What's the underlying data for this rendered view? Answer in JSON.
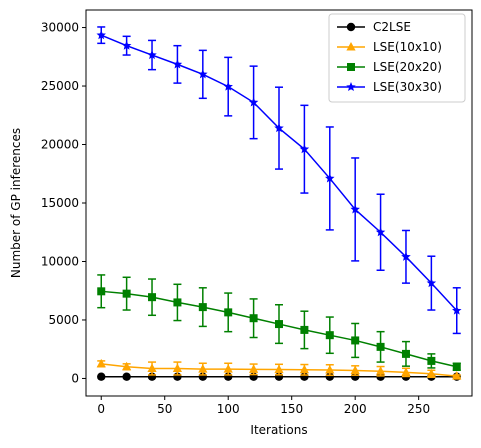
{
  "chart_data": {
    "type": "line",
    "title": "",
    "xlabel": "Iterations",
    "ylabel": "Number of GP inferences",
    "xlim": [
      -12,
      292
    ],
    "ylim": [
      -1500,
      31500
    ],
    "xticks": [
      0,
      50,
      100,
      150,
      200,
      250
    ],
    "yticks": [
      0,
      5000,
      10000,
      15000,
      20000,
      25000,
      30000
    ],
    "grid": false,
    "legend": "top-right",
    "series": [
      {
        "name": "C2LSE",
        "color": "#000000",
        "marker": "circle",
        "x": [
          0,
          20,
          40,
          60,
          80,
          100,
          120,
          140,
          160,
          180,
          200,
          220,
          240,
          260,
          280
        ],
        "y": [
          150,
          150,
          150,
          150,
          150,
          150,
          150,
          150,
          150,
          150,
          150,
          150,
          150,
          150,
          150
        ],
        "err": [
          0,
          0,
          0,
          0,
          0,
          0,
          0,
          0,
          0,
          0,
          0,
          0,
          0,
          0,
          0
        ]
      },
      {
        "name": "LSE(10x10)",
        "color": "#ffa500",
        "marker": "triangle",
        "x": [
          0,
          20,
          40,
          60,
          80,
          100,
          120,
          140,
          160,
          180,
          200,
          220,
          240,
          260,
          280
        ],
        "y": [
          1250,
          1000,
          850,
          850,
          800,
          800,
          780,
          760,
          740,
          720,
          680,
          620,
          520,
          400,
          200
        ],
        "err": [
          250,
          250,
          550,
          550,
          500,
          500,
          450,
          450,
          450,
          450,
          400,
          400,
          350,
          300,
          100
        ]
      },
      {
        "name": "LSE(20x20)",
        "color": "#008000",
        "marker": "square",
        "x": [
          0,
          20,
          40,
          60,
          80,
          100,
          120,
          140,
          160,
          180,
          200,
          220,
          240,
          260,
          280
        ],
        "y": [
          7450,
          7250,
          6950,
          6500,
          6100,
          5650,
          5150,
          4650,
          4150,
          3700,
          3250,
          2700,
          2100,
          1500,
          1000
        ],
        "err": [
          1400,
          1400,
          1550,
          1550,
          1650,
          1650,
          1650,
          1650,
          1600,
          1550,
          1450,
          1300,
          1050,
          600,
          300
        ]
      },
      {
        "name": "LSE(30x30)",
        "color": "#0000ff",
        "marker": "star",
        "x": [
          0,
          20,
          40,
          60,
          80,
          100,
          120,
          140,
          160,
          180,
          200,
          220,
          240,
          260,
          280
        ],
        "y": [
          29350,
          28450,
          27650,
          26850,
          26000,
          24950,
          23600,
          21400,
          19600,
          17100,
          14450,
          12500,
          10400,
          8150,
          5800
        ],
        "err": [
          700,
          800,
          1250,
          1600,
          2050,
          2500,
          3100,
          3500,
          3750,
          4400,
          4400,
          3250,
          2250,
          2300,
          1950
        ]
      }
    ]
  }
}
